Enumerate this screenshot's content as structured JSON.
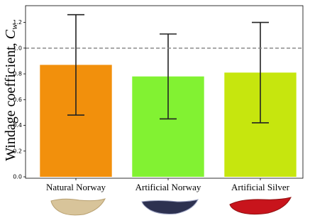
{
  "chart_data": {
    "type": "bar",
    "ylabel": "Windage coefficient,",
    "ylabel_symbol": "C",
    "ylabel_subscript": "w",
    "categories": [
      "Natural Norway",
      "Artificial Norway",
      "Artificial Silver"
    ],
    "values": [
      0.87,
      0.78,
      0.81
    ],
    "errors": [
      0.39,
      0.33,
      0.39
    ],
    "colors": [
      "#f2900c",
      "#82f232",
      "#c6e60e"
    ],
    "ylim": [
      0,
      1.33
    ],
    "yticks": [
      {
        "value": 0,
        "label": "0.0"
      },
      0.2,
      0.4,
      0.6,
      0.8,
      {
        "value": 1,
        "label": "1.0"
      },
      1.2
    ],
    "reference_line": 1.0
  }
}
